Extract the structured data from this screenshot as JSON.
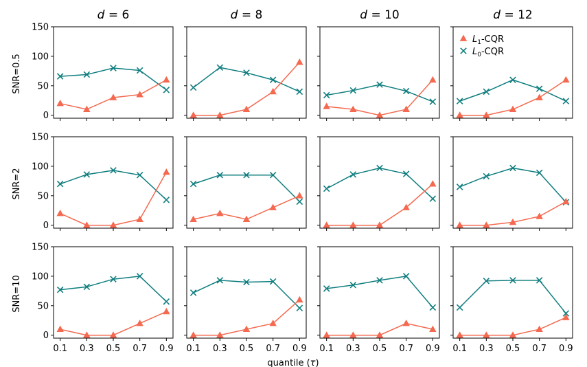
{
  "colors": {
    "l1": "#f4694f",
    "l0": "#0f7d7e"
  },
  "chart_data": {
    "type": "line",
    "layout": "grid 3 rows x 4 columns",
    "col_titles": [
      {
        "var": "d",
        "eq": " = ",
        "num": "6"
      },
      {
        "var": "d",
        "eq": " = ",
        "num": "8"
      },
      {
        "var": "d",
        "eq": " = ",
        "num": "10"
      },
      {
        "var": "d",
        "eq": " = ",
        "num": "12"
      }
    ],
    "row_labels": [
      "SNR=0.5",
      "SNR=2",
      "SNR=10"
    ],
    "x": [
      0.1,
      0.3,
      0.5,
      0.7,
      0.9
    ],
    "x_ticks": [
      "0.1",
      "0.3",
      "0.5",
      "0.7",
      "0.9"
    ],
    "xlabel": {
      "text": "quantile (",
      "sym": "τ",
      "close": ")"
    },
    "ylim": [
      -5,
      150
    ],
    "xlim": [
      0.05,
      0.95
    ],
    "y_ticks": [
      0,
      50,
      100,
      150
    ],
    "y_tick_labels": [
      "0",
      "50",
      "100",
      "150"
    ],
    "legend": {
      "placement": "top-left of top-right panel",
      "entries": [
        {
          "key": "l1",
          "main": "L",
          "sub": "1",
          "rest": "-CQR",
          "marker": "triangle"
        },
        {
          "key": "l0",
          "main": "L",
          "sub": "0",
          "rest": "-CQR",
          "marker": "x"
        }
      ]
    },
    "panels": [
      [
        {
          "l1": [
            20,
            10,
            30,
            35,
            60
          ],
          "l0": [
            66,
            69,
            80,
            76,
            43
          ]
        },
        {
          "l1": [
            0,
            0,
            10,
            40,
            90
          ],
          "l0": [
            47,
            81,
            72,
            60,
            40
          ]
        },
        {
          "l1": [
            15,
            10,
            0,
            10,
            60
          ],
          "l0": [
            34,
            42,
            52,
            41,
            23
          ]
        },
        {
          "l1": [
            0,
            0,
            10,
            30,
            60
          ],
          "l0": [
            24,
            40,
            60,
            45,
            24
          ]
        }
      ],
      [
        {
          "l1": [
            20,
            0,
            0,
            10,
            90
          ],
          "l0": [
            70,
            86,
            93,
            85,
            43
          ]
        },
        {
          "l1": [
            10,
            20,
            10,
            30,
            50
          ],
          "l0": [
            70,
            85,
            85,
            85,
            40
          ]
        },
        {
          "l1": [
            0,
            0,
            0,
            30,
            70
          ],
          "l0": [
            62,
            86,
            97,
            87,
            45
          ]
        },
        {
          "l1": [
            0,
            0,
            5,
            15,
            40
          ],
          "l0": [
            65,
            83,
            97,
            89,
            39
          ]
        }
      ],
      [
        {
          "l1": [
            10,
            0,
            0,
            20,
            40
          ],
          "l0": [
            77,
            82,
            95,
            100,
            57
          ]
        },
        {
          "l1": [
            0,
            0,
            10,
            20,
            60
          ],
          "l0": [
            72,
            93,
            90,
            91,
            46
          ]
        },
        {
          "l1": [
            0,
            0,
            0,
            20,
            10
          ],
          "l0": [
            79,
            85,
            93,
            100,
            47
          ]
        },
        {
          "l1": [
            0,
            0,
            0,
            10,
            30
          ],
          "l0": [
            47,
            92,
            93,
            93,
            37
          ]
        }
      ]
    ]
  }
}
